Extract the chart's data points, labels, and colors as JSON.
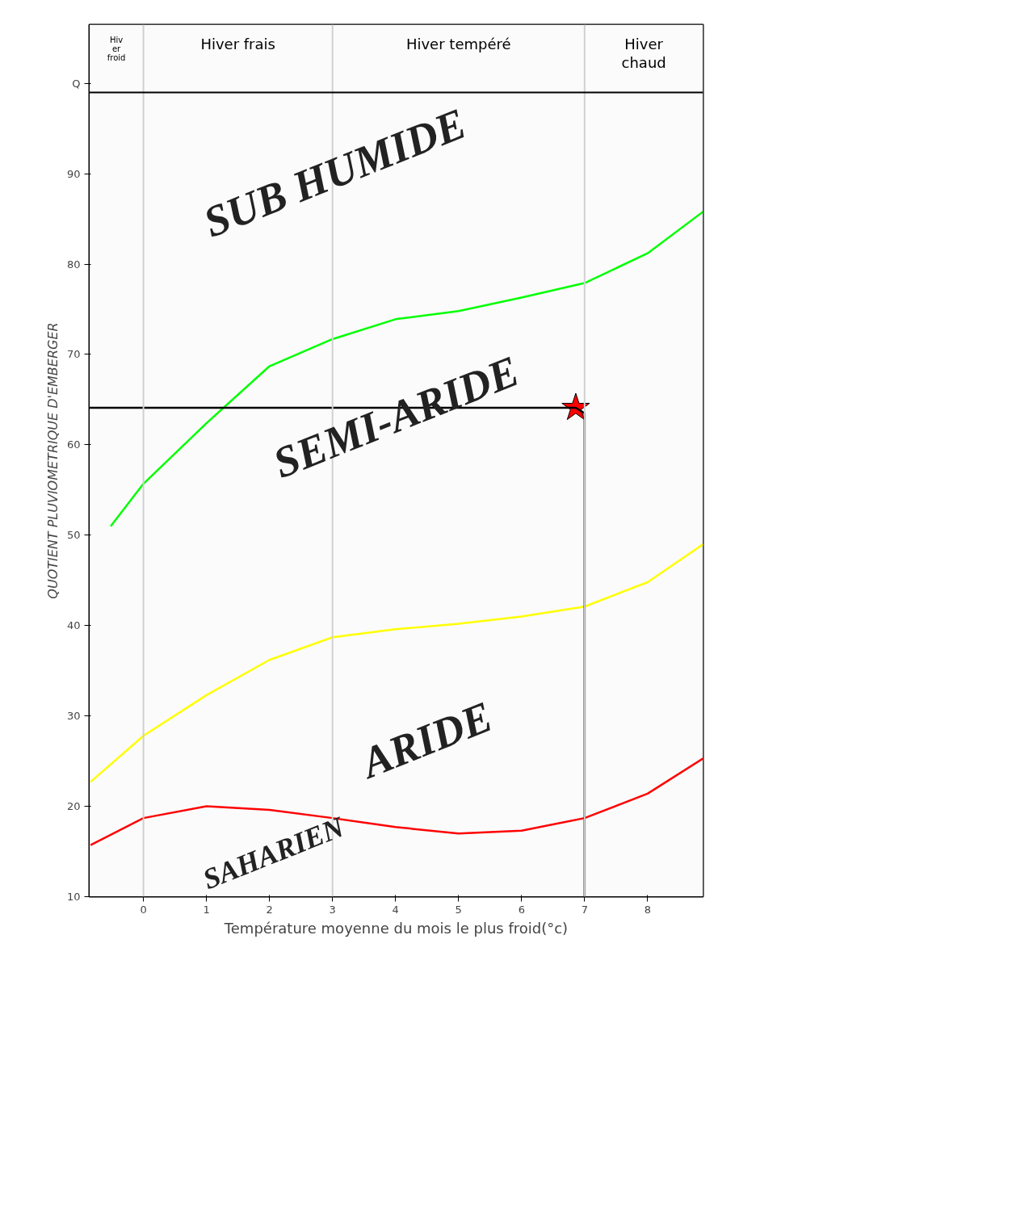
{
  "chart_data": {
    "type": "line",
    "xlabel": "Température moyenne du mois le plus froid(°c)",
    "ylabel": "QUOTIENT PLUVIOMETRIQUE D'EMBERGER",
    "xlim": [
      -0.86,
      8.88
    ],
    "xticks": [
      0,
      1,
      2,
      3,
      4,
      5,
      6,
      7,
      8
    ],
    "ylim": [
      10,
      106.5
    ],
    "yticks": [
      10,
      20,
      30,
      40,
      50,
      60,
      70,
      80,
      90,
      {
        "value": 100,
        "label": "Q"
      }
    ],
    "grid": false,
    "marker": "none",
    "line_style": "solid",
    "series": [
      {
        "color": "#00ff00",
        "x": [
          -0.52,
          0,
          1,
          2,
          3,
          4,
          5,
          6,
          7,
          8,
          8.88
        ],
        "values": [
          51,
          55.7,
          62.4,
          68.7,
          71.7,
          73.9,
          74.8,
          76.3,
          77.9,
          81.2,
          85.8
        ]
      },
      {
        "color": "#ffff00",
        "x": [
          -0.84,
          0,
          1,
          2,
          3,
          4,
          5,
          6,
          7,
          8,
          8.88
        ],
        "values": [
          22.7,
          27.8,
          32.3,
          36.2,
          38.7,
          39.6,
          40.2,
          41,
          42.1,
          44.8,
          49
        ]
      },
      {
        "color": "#ff0000",
        "x": [
          -0.84,
          0,
          1,
          2,
          3,
          4,
          5,
          6,
          7,
          8,
          8.88
        ],
        "values": [
          15.7,
          18.7,
          20,
          19.6,
          18.7,
          17.7,
          17,
          17.3,
          18.7,
          21.4,
          25.3
        ]
      },
      {
        "color": "#000000",
        "x": [
          -0.86,
          6.86,
          7.0,
          7.0
        ],
        "values": [
          64.1,
          64.1,
          63.5,
          10
        ]
      },
      {
        "type": "scatter",
        "marker": "star",
        "color": "#ff0000",
        "x": [
          6.86
        ],
        "values": [
          64.1
        ]
      }
    ],
    "ref_lines": [
      {
        "axis": "x",
        "value": 0,
        "color": "#d0d0d0"
      },
      {
        "axis": "x",
        "value": 3,
        "color": "#d0d0d0"
      },
      {
        "axis": "x",
        "value": 7,
        "color": "#d0d0d0"
      },
      {
        "axis": "y",
        "value": 99,
        "color": "#000000"
      }
    ],
    "bands": [
      {
        "axis": "x",
        "from": -0.86,
        "to": 0,
        "label": "Hiv\ner\nfroid",
        "color": "#fbfbfb"
      },
      {
        "axis": "x",
        "from": 0,
        "to": 3,
        "label": "Hiver frais",
        "color": "#fbfbfb"
      },
      {
        "axis": "x",
        "from": 3,
        "to": 7,
        "label": "Hiver tempéré",
        "color": "#fbfbfb"
      },
      {
        "axis": "x",
        "from": 7,
        "to": 8.88,
        "label": "Hiver\nchaud",
        "color": "#fbfbfb"
      }
    ],
    "annotations": [
      "SUB HUMIDE",
      "SEMI-ARIDE",
      "ARIDE",
      "SAHARIEN"
    ]
  }
}
